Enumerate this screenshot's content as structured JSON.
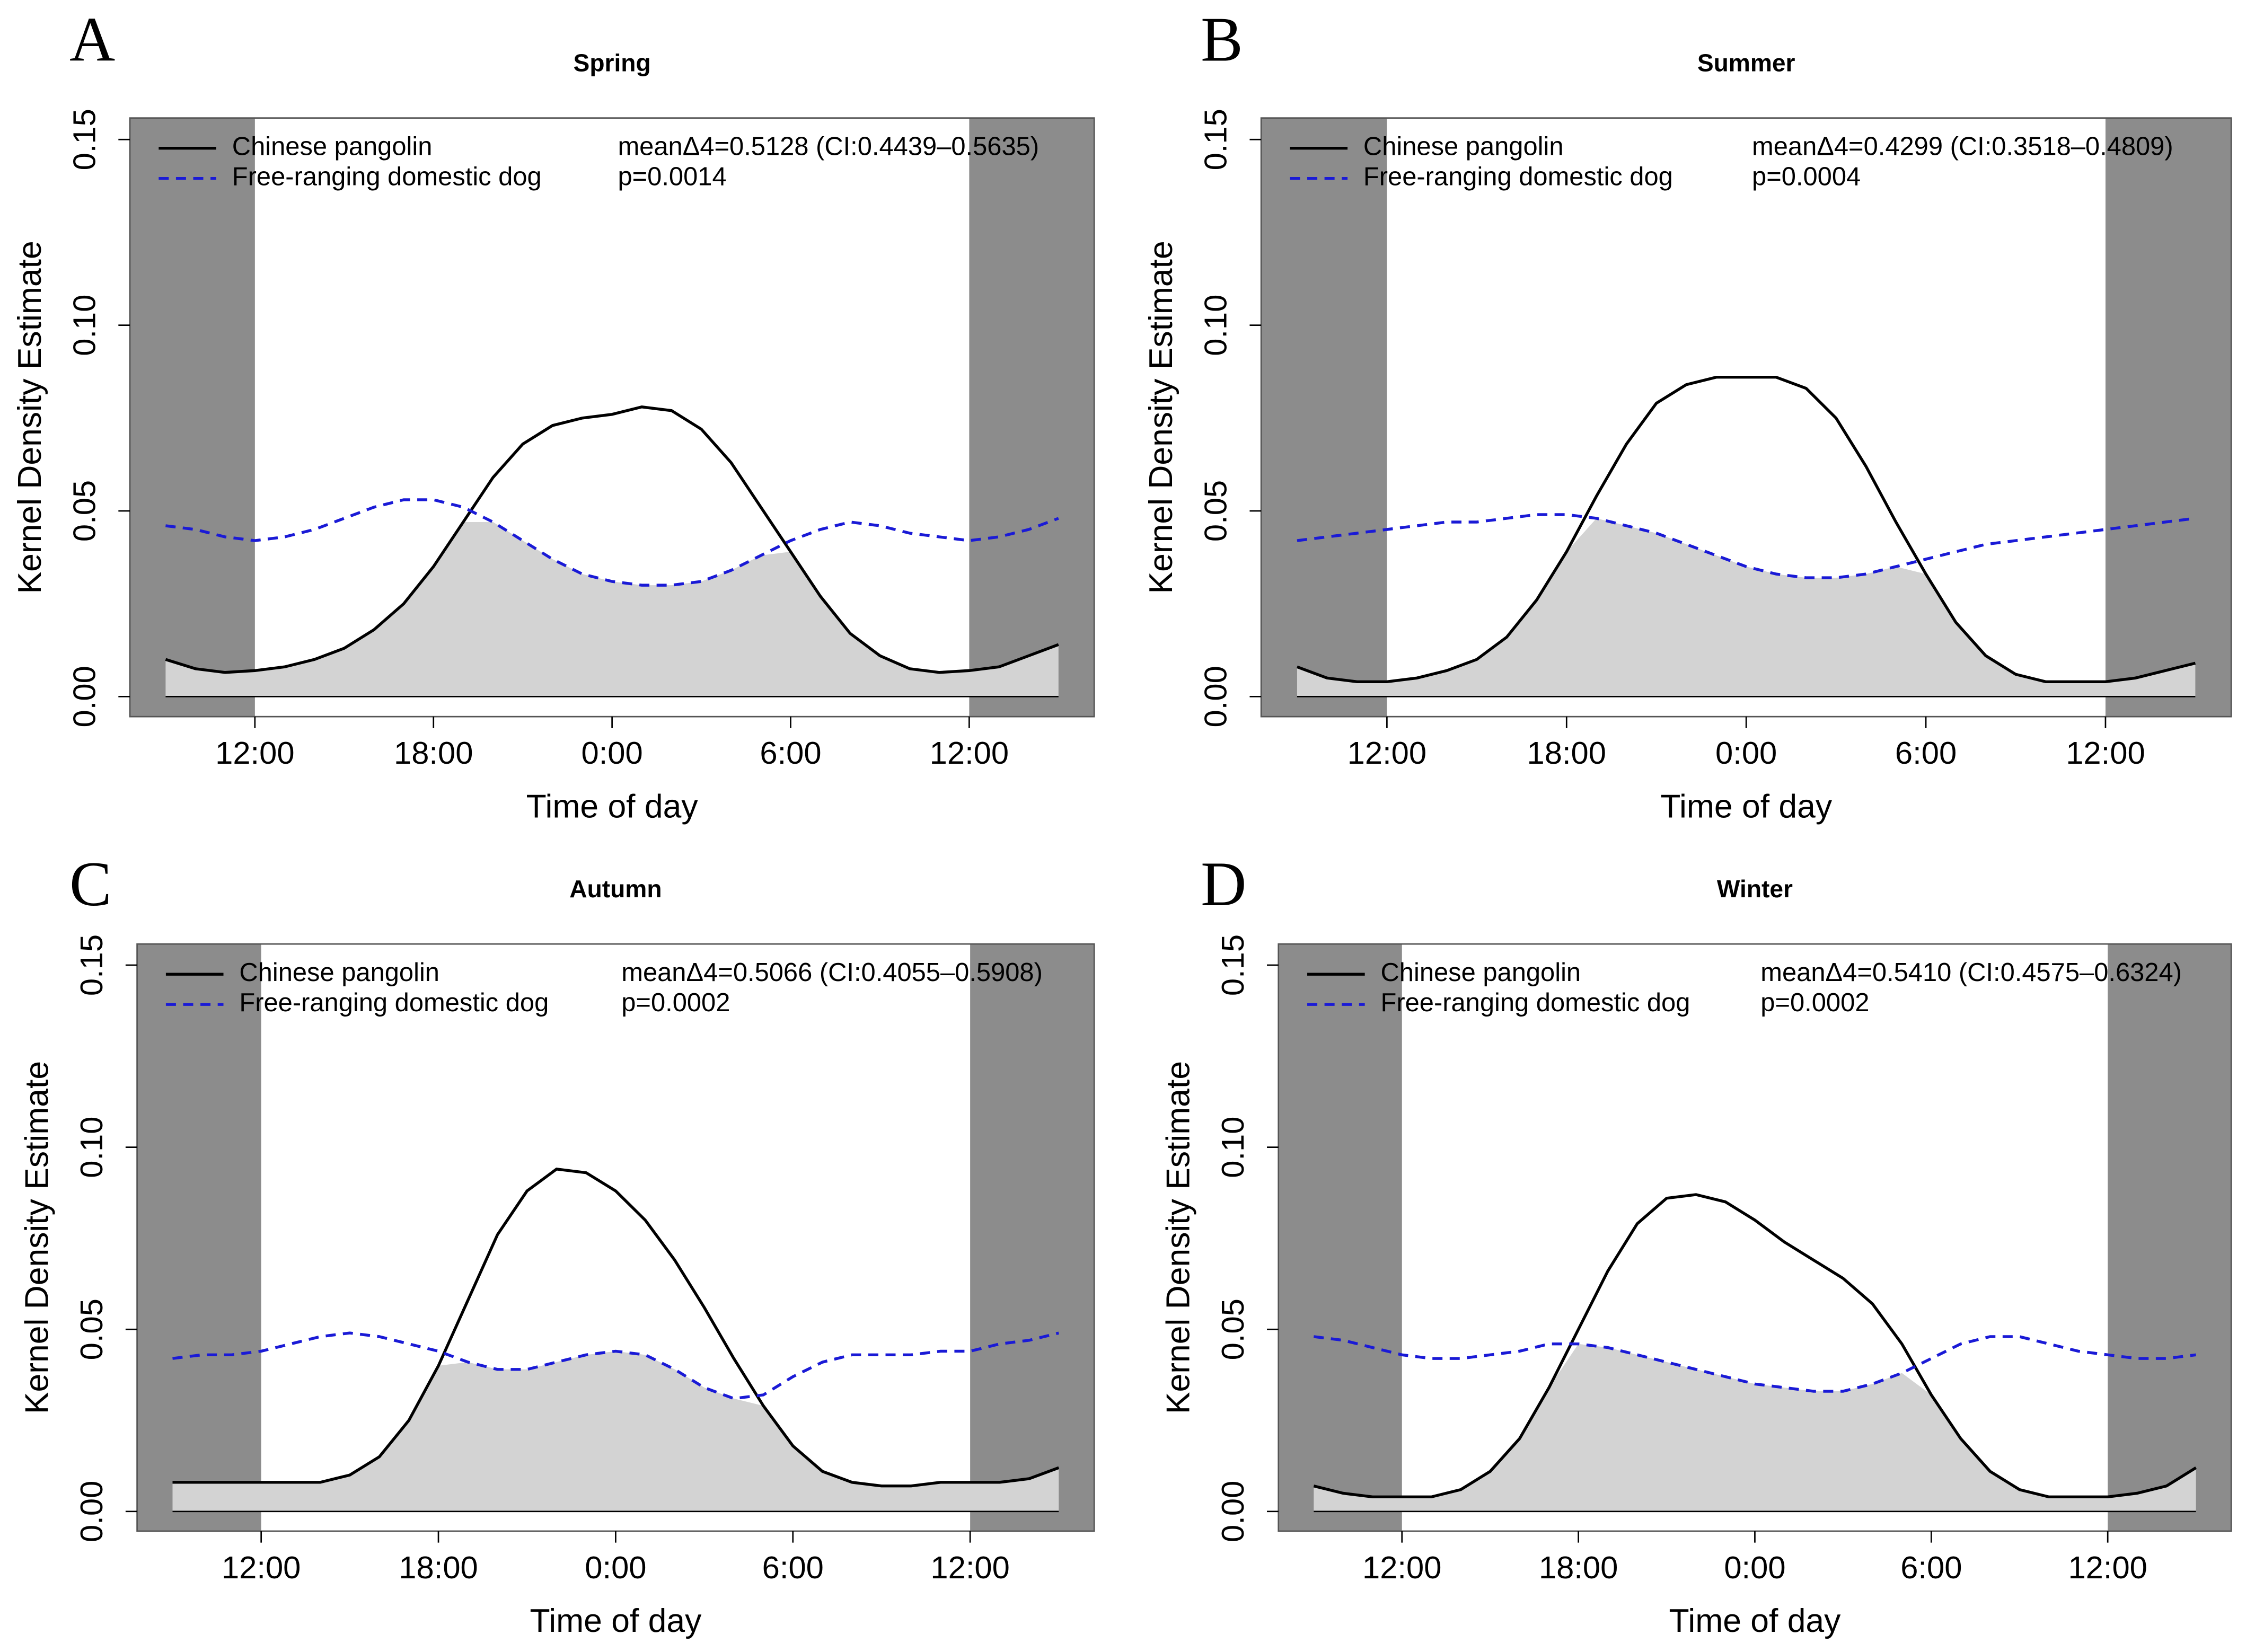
{
  "chart_data": [
    {
      "type": "line",
      "panel_label": "A",
      "title": "Spring",
      "xlabel": "Time of day",
      "ylabel": "Kernel Density Estimate",
      "x": [
        9,
        10,
        11,
        12,
        13,
        14,
        15,
        16,
        17,
        18,
        19,
        20,
        21,
        22,
        23,
        24,
        25,
        26,
        27,
        28,
        29,
        30,
        31,
        32,
        33,
        34,
        35,
        36,
        37,
        38,
        39
      ],
      "xlim": [
        7.8,
        40.2
      ],
      "xticks": [
        {
          "value": 12,
          "label": "12:00"
        },
        {
          "value": 18,
          "label": "18:00"
        },
        {
          "value": 24,
          "label": "0:00"
        },
        {
          "value": 30,
          "label": "6:00"
        },
        {
          "value": 36,
          "label": "12:00"
        }
      ],
      "ylim": [
        -0.0054,
        0.1558
      ],
      "yticks": [
        {
          "value": 0,
          "label": "0.00"
        },
        0.05,
        {
          "value": 0.1,
          "label": "0.10"
        },
        0.15
      ],
      "shading": [
        {
          "from": 7.8,
          "to": 12
        },
        {
          "from": 36,
          "to": 40.2
        }
      ],
      "shading_color": "#8c8c8c",
      "overlap_color": "#d3d3d3",
      "series": [
        {
          "name": "Chinese pangolin",
          "color": "#000000",
          "line_style": "solid",
          "values": [
            0.01,
            0.0075,
            0.0065,
            0.007,
            0.008,
            0.01,
            0.013,
            0.018,
            0.025,
            0.035,
            0.047,
            0.059,
            0.068,
            0.073,
            0.075,
            0.076,
            0.078,
            0.077,
            0.072,
            0.063,
            0.051,
            0.039,
            0.027,
            0.017,
            0.011,
            0.0075,
            0.0065,
            0.007,
            0.008,
            0.011,
            0.014
          ]
        },
        {
          "name": "Free-ranging domestic dog",
          "color": "#1a1ad6",
          "line_style": "dashed",
          "values": [
            0.046,
            0.045,
            0.043,
            0.042,
            0.043,
            0.045,
            0.048,
            0.051,
            0.053,
            0.053,
            0.051,
            0.047,
            0.042,
            0.037,
            0.033,
            0.031,
            0.03,
            0.03,
            0.031,
            0.034,
            0.038,
            0.042,
            0.045,
            0.047,
            0.046,
            0.044,
            0.043,
            0.042,
            0.043,
            0.045,
            0.048
          ]
        }
      ],
      "annotations": [
        "meanΔ4=0.5128 (CI:0.4439–0.5635)",
        "p=0.0014"
      ]
    },
    {
      "type": "line",
      "panel_label": "B",
      "title": "Summer",
      "xlabel": "Time of day",
      "ylabel": "Kernel Density Estimate",
      "x": [
        9,
        10,
        11,
        12,
        13,
        14,
        15,
        16,
        17,
        18,
        19,
        20,
        21,
        22,
        23,
        24,
        25,
        26,
        27,
        28,
        29,
        30,
        31,
        32,
        33,
        34,
        35,
        36,
        37,
        38,
        39
      ],
      "xlim": [
        7.8,
        40.2
      ],
      "xticks": [
        {
          "value": 12,
          "label": "12:00"
        },
        {
          "value": 18,
          "label": "18:00"
        },
        {
          "value": 24,
          "label": "0:00"
        },
        {
          "value": 30,
          "label": "6:00"
        },
        {
          "value": 36,
          "label": "12:00"
        }
      ],
      "ylim": [
        -0.0054,
        0.1558
      ],
      "yticks": [
        {
          "value": 0,
          "label": "0.00"
        },
        0.05,
        {
          "value": 0.1,
          "label": "0.10"
        },
        0.15
      ],
      "shading": [
        {
          "from": 7.8,
          "to": 12
        },
        {
          "from": 36,
          "to": 40.2
        }
      ],
      "shading_color": "#8c8c8c",
      "overlap_color": "#d3d3d3",
      "series": [
        {
          "name": "Chinese pangolin",
          "color": "#000000",
          "line_style": "solid",
          "values": [
            0.008,
            0.005,
            0.004,
            0.004,
            0.005,
            0.007,
            0.01,
            0.016,
            0.026,
            0.039,
            0.054,
            0.068,
            0.079,
            0.084,
            0.086,
            0.086,
            0.086,
            0.083,
            0.075,
            0.062,
            0.047,
            0.033,
            0.02,
            0.011,
            0.006,
            0.004,
            0.004,
            0.004,
            0.005,
            0.007,
            0.009
          ]
        },
        {
          "name": "Free-ranging domestic dog",
          "color": "#1a1ad6",
          "line_style": "dashed",
          "values": [
            0.042,
            0.043,
            0.044,
            0.045,
            0.046,
            0.047,
            0.047,
            0.048,
            0.049,
            0.049,
            0.048,
            0.046,
            0.044,
            0.041,
            0.038,
            0.035,
            0.033,
            0.032,
            0.032,
            0.033,
            0.035,
            0.037,
            0.039,
            0.041,
            0.042,
            0.043,
            0.044,
            0.045,
            0.046,
            0.047,
            0.048
          ]
        }
      ],
      "annotations": [
        "meanΔ4=0.4299 (CI:0.3518–0.4809)",
        "p=0.0004"
      ]
    },
    {
      "type": "line",
      "panel_label": "C",
      "title": "Autumn",
      "xlabel": "Time of day",
      "ylabel": "Kernel Density Estimate",
      "x": [
        9,
        10,
        11,
        12,
        13,
        14,
        15,
        16,
        17,
        18,
        19,
        20,
        21,
        22,
        23,
        24,
        25,
        26,
        27,
        28,
        29,
        30,
        31,
        32,
        33,
        34,
        35,
        36,
        37,
        38,
        39
      ],
      "xlim": [
        7.8,
        40.2
      ],
      "xticks": [
        {
          "value": 12,
          "label": "12:00"
        },
        {
          "value": 18,
          "label": "18:00"
        },
        {
          "value": 24,
          "label": "0:00"
        },
        {
          "value": 30,
          "label": "6:00"
        },
        {
          "value": 36,
          "label": "12:00"
        }
      ],
      "ylim": [
        -0.0054,
        0.1558
      ],
      "yticks": [
        {
          "value": 0,
          "label": "0.00"
        },
        0.05,
        {
          "value": 0.1,
          "label": "0.10"
        },
        0.15
      ],
      "shading": [
        {
          "from": 7.8,
          "to": 12
        },
        {
          "from": 36,
          "to": 40.2
        }
      ],
      "shading_color": "#8c8c8c",
      "overlap_color": "#d3d3d3",
      "series": [
        {
          "name": "Chinese pangolin",
          "color": "#000000",
          "line_style": "solid",
          "values": [
            0.008,
            0.008,
            0.008,
            0.008,
            0.008,
            0.008,
            0.01,
            0.015,
            0.025,
            0.04,
            0.058,
            0.076,
            0.088,
            0.094,
            0.093,
            0.088,
            0.08,
            0.069,
            0.056,
            0.042,
            0.029,
            0.018,
            0.011,
            0.008,
            0.007,
            0.007,
            0.008,
            0.008,
            0.008,
            0.009,
            0.012
          ]
        },
        {
          "name": "Free-ranging domestic dog",
          "color": "#1a1ad6",
          "line_style": "dashed",
          "values": [
            0.042,
            0.043,
            0.043,
            0.044,
            0.046,
            0.048,
            0.049,
            0.048,
            0.046,
            0.044,
            0.041,
            0.039,
            0.039,
            0.041,
            0.043,
            0.044,
            0.043,
            0.039,
            0.034,
            0.031,
            0.032,
            0.037,
            0.041,
            0.043,
            0.043,
            0.043,
            0.044,
            0.044,
            0.046,
            0.047,
            0.049
          ]
        }
      ],
      "annotations": [
        "meanΔ4=0.5066 (CI:0.4055–0.5908)",
        "p=0.0002"
      ]
    },
    {
      "type": "line",
      "panel_label": "D",
      "title": "Winter",
      "xlabel": "Time of day",
      "ylabel": "Kernel Density Estimate",
      "x": [
        9,
        10,
        11,
        12,
        13,
        14,
        15,
        16,
        17,
        18,
        19,
        20,
        21,
        22,
        23,
        24,
        25,
        26,
        27,
        28,
        29,
        30,
        31,
        32,
        33,
        34,
        35,
        36,
        37,
        38,
        39
      ],
      "xlim": [
        7.8,
        40.2
      ],
      "xticks": [
        {
          "value": 12,
          "label": "12:00"
        },
        {
          "value": 18,
          "label": "18:00"
        },
        {
          "value": 24,
          "label": "0:00"
        },
        {
          "value": 30,
          "label": "6:00"
        },
        {
          "value": 36,
          "label": "12:00"
        }
      ],
      "ylim": [
        -0.0054,
        0.1558
      ],
      "yticks": [
        {
          "value": 0,
          "label": "0.00"
        },
        0.05,
        {
          "value": 0.1,
          "label": "0.10"
        },
        0.15
      ],
      "shading": [
        {
          "from": 7.8,
          "to": 12
        },
        {
          "from": 36,
          "to": 40.2
        }
      ],
      "shading_color": "#8c8c8c",
      "overlap_color": "#d3d3d3",
      "series": [
        {
          "name": "Chinese pangolin",
          "color": "#000000",
          "line_style": "solid",
          "values": [
            0.007,
            0.005,
            0.004,
            0.004,
            0.004,
            0.006,
            0.011,
            0.02,
            0.034,
            0.05,
            0.066,
            0.079,
            0.086,
            0.087,
            0.085,
            0.08,
            0.074,
            0.069,
            0.064,
            0.057,
            0.046,
            0.032,
            0.02,
            0.011,
            0.006,
            0.004,
            0.004,
            0.004,
            0.005,
            0.007,
            0.012
          ]
        },
        {
          "name": "Free-ranging domestic dog",
          "color": "#1a1ad6",
          "line_style": "dashed",
          "values": [
            0.048,
            0.047,
            0.045,
            0.043,
            0.042,
            0.042,
            0.043,
            0.044,
            0.046,
            0.046,
            0.045,
            0.043,
            0.041,
            0.039,
            0.037,
            0.035,
            0.034,
            0.033,
            0.033,
            0.035,
            0.038,
            0.042,
            0.046,
            0.048,
            0.048,
            0.046,
            0.044,
            0.043,
            0.042,
            0.042,
            0.043
          ]
        }
      ],
      "annotations": [
        "meanΔ4=0.5410 (CI:0.4575–0.6324)",
        "p=0.0002"
      ]
    }
  ]
}
